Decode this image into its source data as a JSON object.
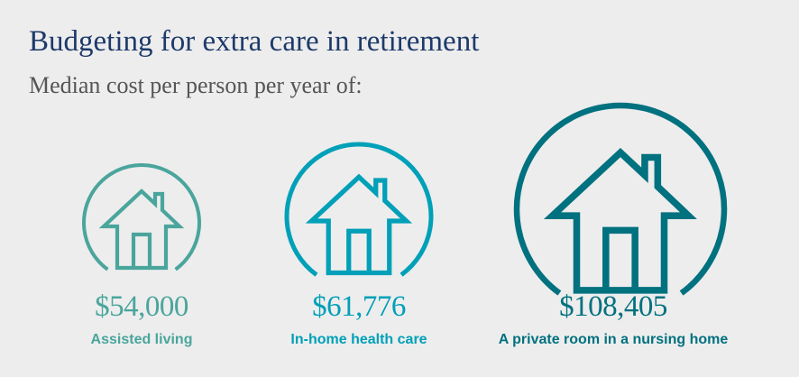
{
  "title": "Budgeting for extra care in retirement",
  "subtitle": "Median cost per person per year of:",
  "items": [
    {
      "value": "$54,000",
      "label": "Assisted living",
      "color": "#4aa59c",
      "icon": "house-icon"
    },
    {
      "value": "$61,776",
      "label": "In-home health care",
      "color": "#00a0b8",
      "icon": "house-icon"
    },
    {
      "value": "$108,405",
      "label": "A private room in a nursing home",
      "color": "#00717f",
      "icon": "house-icon"
    }
  ]
}
